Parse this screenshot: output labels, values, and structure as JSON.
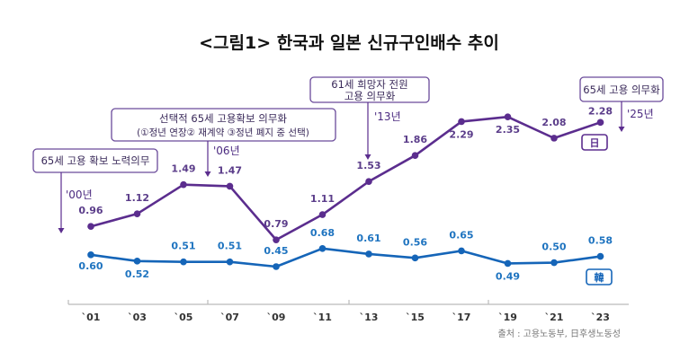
{
  "title": "<그림1> 한국과 일본 신규구인배수 추이",
  "source": "출처 : 고용노동부, 日후생노동성",
  "annotations": [
    {
      "lines": [
        "65세 고용 확보 노력의무"
      ],
      "year": "'00년"
    },
    {
      "lines": [
        "선택적 65세 고용확보 의무화",
        "(①정년 연장② 재계약 ③정년 폐지 중 선택)"
      ],
      "year": "'06년"
    },
    {
      "lines": [
        "61세 희망자 전원",
        "고용 의무화"
      ],
      "year": "'13년"
    },
    {
      "lines": [
        "65세 고용 의무화"
      ],
      "year": "'25년"
    }
  ],
  "colors": {
    "japan": "#5b2d8e",
    "korea": "#1565b8",
    "axis": "#bbbbbb"
  },
  "chart_data": {
    "type": "line",
    "title": "<그림1> 한국과 일본 신규구인배수 추이",
    "categories": [
      "`01",
      "`03",
      "`05",
      "`07",
      "`09",
      "`11",
      "`13",
      "`15",
      "`17",
      "`19",
      "`21",
      "`23"
    ],
    "series": [
      {
        "name": "日",
        "values": [
          0.96,
          1.12,
          1.49,
          1.47,
          0.79,
          1.11,
          1.53,
          1.86,
          2.29,
          2.35,
          2.08,
          2.28
        ]
      },
      {
        "name": "韓",
        "values": [
          0.6,
          0.52,
          0.51,
          0.51,
          0.45,
          0.68,
          0.61,
          0.56,
          0.65,
          0.49,
          0.5,
          0.58
        ]
      }
    ],
    "ylim": [
      0,
      2.5
    ],
    "grid": false,
    "legend": "inline at series end"
  }
}
